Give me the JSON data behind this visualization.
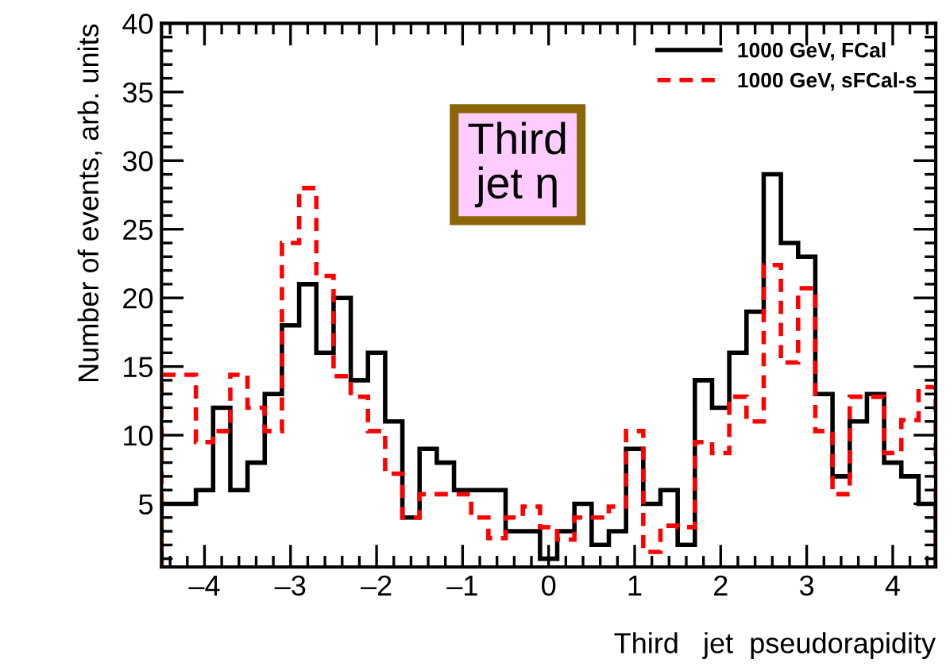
{
  "chart_data": {
    "type": "histogram",
    "xlabel": "Third   jet  pseudorapidity",
    "ylabel": "Number of events, arb. units",
    "annotations": [
      "Third\njet η"
    ],
    "bins": [
      -4.5,
      -4.3,
      -4.1,
      -3.9,
      -3.7,
      -3.5,
      -3.3,
      -3.1,
      -2.9,
      -2.7,
      -2.5,
      -2.3,
      -2.1,
      -1.9,
      -1.7,
      -1.5,
      -1.3,
      -1.1,
      -0.9,
      -0.7,
      -0.5,
      -0.3,
      -0.1,
      0.1,
      0.3,
      0.5,
      0.7,
      0.9,
      1.1,
      1.3,
      1.5,
      1.7,
      1.9,
      2.1,
      2.3,
      2.5,
      2.7,
      2.9,
      3.1,
      3.3,
      3.5,
      3.7,
      3.9,
      4.1,
      4.3,
      4.5
    ],
    "series": [
      {
        "name": "1000 GeV, FCal",
        "color": "#000000",
        "line_style": "solid",
        "values": [
          5,
          5,
          6,
          12,
          6,
          8,
          13,
          18,
          21,
          16,
          20,
          14,
          16,
          11,
          4,
          9,
          8,
          6,
          6,
          6,
          3,
          3,
          1,
          3,
          5,
          2,
          3,
          9,
          5,
          6,
          2,
          14,
          12,
          16,
          19,
          29,
          24,
          23,
          13,
          7,
          11,
          13,
          8,
          7,
          5
        ]
      },
      {
        "name": "1000 GeV, sFCal-s",
        "color": "#ff0000",
        "line_style": "dashed",
        "values": [
          14.4,
          14.4,
          9.5,
          10.3,
          14.4,
          12,
          10.3,
          24,
          28,
          21.6,
          14.3,
          12.8,
          10.3,
          7.2,
          4,
          5.7,
          5.7,
          5.7,
          4,
          2.5,
          4,
          4.8,
          3.3,
          2.4,
          4,
          4,
          4.8,
          10.3,
          1.5,
          3.4,
          3.3,
          9.5,
          8.7,
          12.8,
          11,
          22.4,
          15.3,
          20.7,
          10.3,
          5.7,
          12.8,
          12.8,
          8.7,
          11.1,
          13.5
        ]
      }
    ],
    "xlim": [
      -4.5,
      4.5
    ],
    "xticks": [
      {
        "value": -4,
        "label": "–4"
      },
      {
        "value": -3,
        "label": "–3"
      },
      {
        "value": -2,
        "label": "–2"
      },
      {
        "value": -1,
        "label": "–1"
      },
      0,
      1,
      2,
      3,
      4
    ],
    "ylim": [
      0.4,
      40
    ],
    "yticks": [
      5,
      10,
      15,
      20,
      25,
      30,
      35,
      40
    ],
    "grid": false,
    "legend": "top right"
  }
}
